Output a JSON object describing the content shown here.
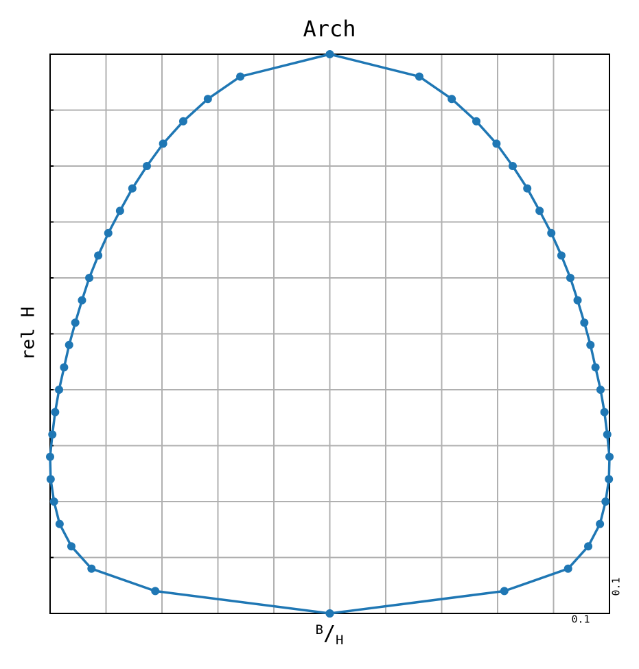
{
  "chart_data": {
    "type": "line",
    "title": "Arch",
    "xlabel": "B/H",
    "ylabel": "rel H",
    "x_scale_label": "0.1",
    "y_scale_label": "0.1",
    "color": "#1f77b4",
    "grid": true,
    "xlim": [
      -0.5,
      0.5
    ],
    "ylim": [
      0,
      1
    ],
    "xticks": [
      -0.4,
      -0.3,
      -0.2,
      -0.1,
      0,
      0.1,
      0.2,
      0.3,
      0.4
    ],
    "yticks": [
      0.1,
      0.2,
      0.3,
      0.4,
      0.5,
      0.6,
      0.7,
      0.8,
      0.9
    ],
    "series": [
      {
        "name": "Arch",
        "x": [
          0,
          -0.312,
          -0.426,
          -0.462,
          -0.483,
          -0.493,
          -0.499,
          -0.5,
          -0.496,
          -0.491,
          -0.484,
          -0.475,
          -0.466,
          -0.455,
          -0.443,
          -0.43,
          -0.414,
          -0.396,
          -0.375,
          -0.353,
          -0.327,
          -0.298,
          -0.262,
          -0.218,
          -0.16,
          0,
          0.16,
          0.218,
          0.262,
          0.298,
          0.327,
          0.353,
          0.375,
          0.396,
          0.414,
          0.43,
          0.443,
          0.455,
          0.466,
          0.475,
          0.484,
          0.491,
          0.496,
          0.5,
          0.499,
          0.493,
          0.483,
          0.462,
          0.426,
          0.312,
          0
        ],
        "values": [
          0,
          0.04,
          0.08,
          0.12,
          0.16,
          0.2,
          0.24,
          0.28,
          0.32,
          0.36,
          0.4,
          0.44,
          0.48,
          0.52,
          0.56,
          0.6,
          0.64,
          0.68,
          0.72,
          0.76,
          0.8,
          0.84,
          0.88,
          0.92,
          0.96,
          1,
          0.96,
          0.92,
          0.88,
          0.84,
          0.8,
          0.76,
          0.72,
          0.68,
          0.64,
          0.6,
          0.56,
          0.52,
          0.48,
          0.44,
          0.4,
          0.36,
          0.32,
          0.28,
          0.24,
          0.2,
          0.16,
          0.12,
          0.08,
          0.04,
          0
        ]
      }
    ]
  }
}
